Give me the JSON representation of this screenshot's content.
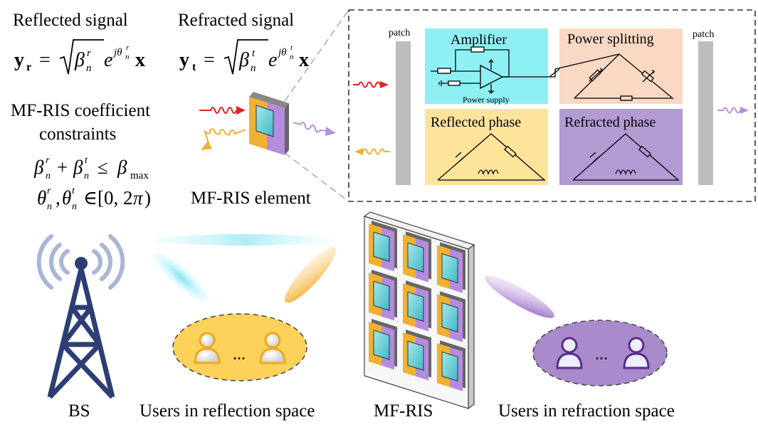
{
  "signals": {
    "reflected": {
      "title": "Reflected signal"
    },
    "refracted": {
      "title": "Refracted signal"
    }
  },
  "constraints": {
    "title_line1": "MF-RIS coefficient",
    "title_line2": "constraints"
  },
  "element_label": "MF-RIS element",
  "circuit": {
    "patch_left": "patch",
    "patch_right": "patch",
    "amplifier": "Amplifier",
    "power_supply": "Power supply",
    "power_splitting": "Power splitting",
    "reflected_phase": "Reflected phase",
    "refracted_phase": "Refracted phase"
  },
  "bottom": {
    "bs": "BS",
    "users_reflection": "Users in reflection space",
    "mfris": "MF-RIS",
    "users_refraction": "Users in refraction space",
    "ellipsis_left": "...",
    "ellipsis_right": "..."
  },
  "colors": {
    "amplifier_bg": "#8ff0f4",
    "power_splitting_bg": "#f9d9c4",
    "reflected_phase_bg": "#fde49b",
    "refracted_phase_bg": "#b29bd3",
    "patch_gray": "#bdbdbd",
    "tower_blue": "#2c3e73",
    "signal_red": "#e02020",
    "signal_orange": "#f0b030",
    "signal_purple": "#b890d8",
    "reflection_users_bg": "#fcd25a",
    "refraction_users_bg": "#a98bcb"
  }
}
